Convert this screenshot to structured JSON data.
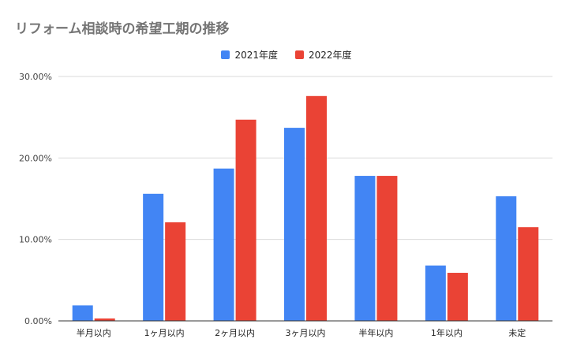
{
  "chart_data": {
    "type": "bar",
    "title": "リフォーム相談時の希望工期の推移",
    "categories": [
      "半月以内",
      "1ヶ月以内",
      "2ヶ月以内",
      "3ヶ月以内",
      "半年以内",
      "1年以内",
      "未定"
    ],
    "series": [
      {
        "name": "2021年度",
        "color": "#4285f4",
        "values": [
          1.9,
          15.6,
          18.7,
          23.7,
          17.8,
          6.8,
          15.3
        ]
      },
      {
        "name": "2022年度",
        "color": "#ea4335",
        "values": [
          0.3,
          12.1,
          24.7,
          27.6,
          17.8,
          5.9,
          11.5
        ]
      }
    ],
    "ylim": [
      0,
      30
    ],
    "yticks": [
      "0.00%",
      "10.00%",
      "20.00%",
      "30.00%"
    ],
    "ytick_values": [
      0,
      10,
      20,
      30
    ],
    "grid": true,
    "legend": "top-center"
  }
}
